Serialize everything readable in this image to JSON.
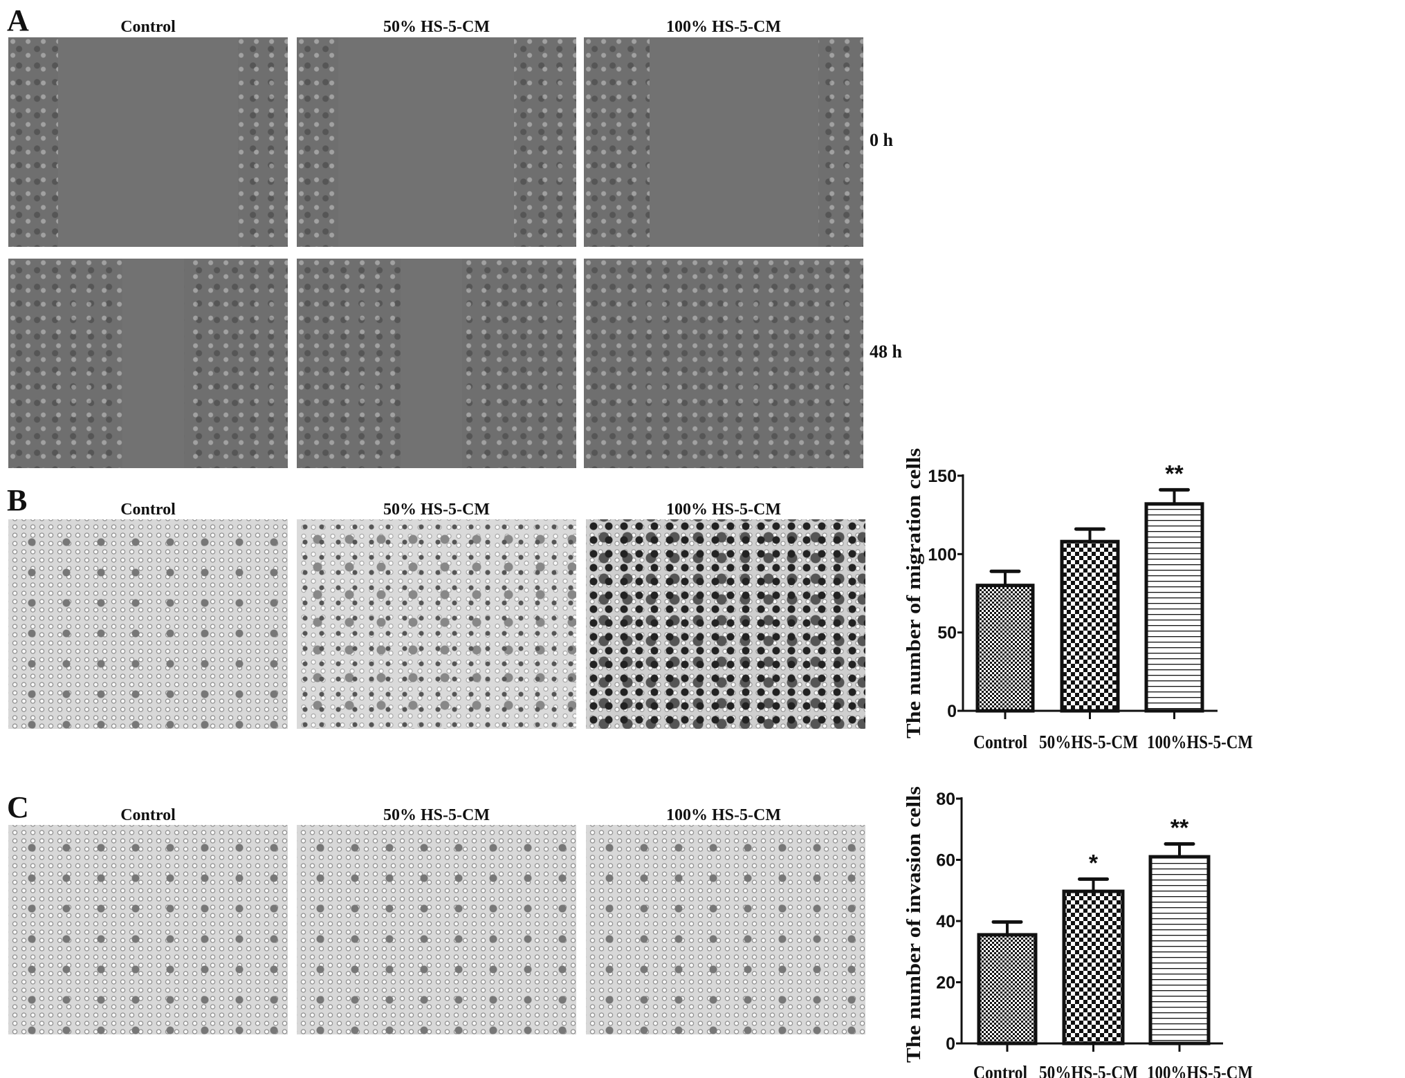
{
  "panels": {
    "A": {
      "letter": "A",
      "columns": [
        "Control",
        "50%  HS-5-CM",
        "100%  HS-5-CM"
      ],
      "rows": [
        "0 h",
        "48 h"
      ]
    },
    "B": {
      "letter": "B",
      "columns": [
        "Control",
        "50%  HS-5-CM",
        "100%  HS-5-CM"
      ]
    },
    "C": {
      "letter": "C",
      "columns": [
        "Control",
        "50%  HS-5-CM",
        "100%  HS-5-CM"
      ]
    }
  },
  "chart_data": [
    {
      "type": "bar",
      "categories": [
        "Control",
        "50%HS-5-CM",
        "100%HS-5-CM"
      ],
      "values": [
        80,
        108,
        132
      ],
      "errors": [
        9,
        8,
        9
      ],
      "significance": [
        "",
        "",
        "**"
      ],
      "patterns": [
        "fine-checker",
        "coarse-checker",
        "horizontal-lines"
      ],
      "ylabel": "The number of migration cells",
      "xlabel": "",
      "ylim": [
        0,
        150
      ],
      "yticks": [
        0,
        50,
        100,
        150
      ],
      "grid": false
    },
    {
      "type": "bar",
      "categories": [
        "Control",
        "50%HS-5-CM",
        "100%HS-5-CM"
      ],
      "values": [
        35.5,
        49.7,
        61
      ],
      "errors": [
        4.2,
        4,
        4.2
      ],
      "significance": [
        "",
        "*",
        "**"
      ],
      "patterns": [
        "fine-checker",
        "coarse-checker",
        "horizontal-lines"
      ],
      "ylabel": "The number of invasion cells",
      "xlabel": "",
      "ylim": [
        0,
        80
      ],
      "yticks": [
        0,
        20,
        40,
        60,
        80
      ],
      "grid": false
    }
  ]
}
